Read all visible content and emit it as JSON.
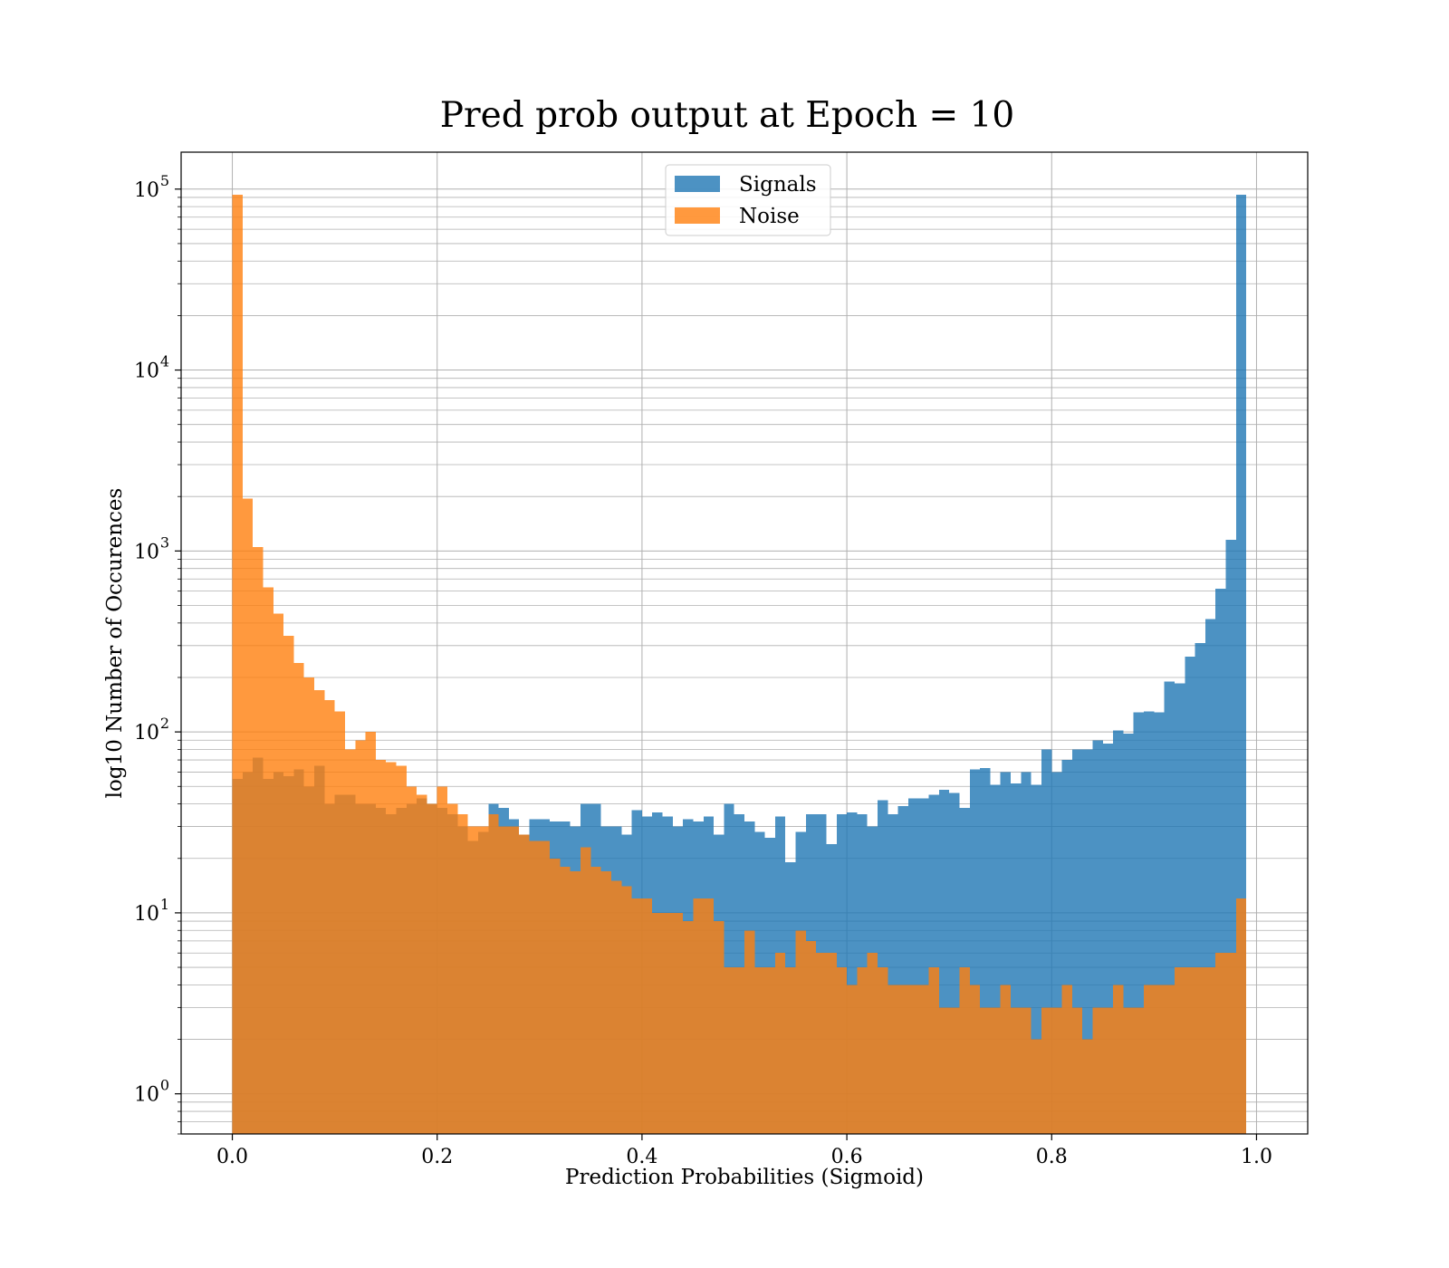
{
  "chart_data": {
    "type": "bar",
    "subtype": "overlaid-histogram",
    "title": "Pred prob output at Epoch = 10",
    "xlabel": "Prediction Probabilities (Sigmoid)",
    "ylabel": "log10 Number of Occurences",
    "yscale": "log",
    "xlim": [
      -0.05,
      1.05
    ],
    "ylim": [
      0.6,
      160000
    ],
    "grid": true,
    "legend_position": "upper center",
    "bins": 100,
    "bin_range": [
      0,
      1
    ],
    "xticks": [
      0.0,
      0.2,
      0.4,
      0.6,
      0.8,
      1.0
    ],
    "xtick_labels": [
      "0.0",
      "0.2",
      "0.4",
      "0.6",
      "0.8",
      "1.0"
    ],
    "yticks": [
      1,
      10,
      100,
      1000,
      10000,
      100000
    ],
    "ytick_labels": [
      {
        "base": "10",
        "exp": "0"
      },
      {
        "base": "10",
        "exp": "1"
      },
      {
        "base": "10",
        "exp": "2"
      },
      {
        "base": "10",
        "exp": "3"
      },
      {
        "base": "10",
        "exp": "4"
      },
      {
        "base": "10",
        "exp": "5"
      }
    ],
    "series": [
      {
        "name": "Signals",
        "color": "#1f77b4",
        "alpha": 0.8,
        "values": [
          55,
          60,
          72,
          55,
          60,
          57,
          62,
          50,
          65,
          40,
          45,
          45,
          40,
          40,
          38,
          35,
          38,
          40,
          43,
          40,
          38,
          35,
          30,
          25,
          28,
          40,
          38,
          33,
          27,
          33,
          33,
          32,
          32,
          30,
          40,
          40,
          30,
          30,
          27,
          37,
          34,
          36,
          34,
          30,
          33,
          32,
          34,
          27,
          40,
          35,
          32,
          28,
          26,
          34,
          19,
          28,
          35,
          35,
          24,
          35,
          36,
          35,
          30,
          42,
          35,
          39,
          43,
          43,
          45,
          48,
          46,
          38,
          62,
          63,
          51,
          60,
          52,
          60,
          51,
          80,
          60,
          70,
          80,
          80,
          90,
          86,
          102,
          98,
          128,
          130,
          128,
          190,
          185,
          260,
          310,
          420,
          620,
          1150,
          93000,
          0
        ]
      },
      {
        "name": "Noise",
        "color": "#ff7f0e",
        "alpha": 0.8,
        "values": [
          93000,
          1950,
          1050,
          630,
          450,
          340,
          240,
          200,
          170,
          150,
          130,
          80,
          90,
          100,
          70,
          68,
          65,
          50,
          45,
          40,
          50,
          40,
          35,
          30,
          30,
          35,
          30,
          30,
          27,
          25,
          25,
          20,
          18,
          17,
          23,
          18,
          17,
          15,
          14,
          12,
          12,
          10,
          10,
          10,
          9,
          12,
          12,
          9,
          5,
          5,
          8,
          5,
          5,
          6,
          5,
          8,
          7,
          6,
          6,
          5,
          4,
          5,
          6,
          5,
          4,
          4,
          4,
          4,
          5,
          3,
          3,
          5,
          4,
          3,
          3,
          4,
          3,
          3,
          2,
          3,
          3,
          4,
          3,
          2,
          3,
          3,
          4,
          3,
          3,
          4,
          4,
          4,
          5,
          5,
          5,
          5,
          6,
          6,
          12,
          0
        ]
      }
    ]
  }
}
